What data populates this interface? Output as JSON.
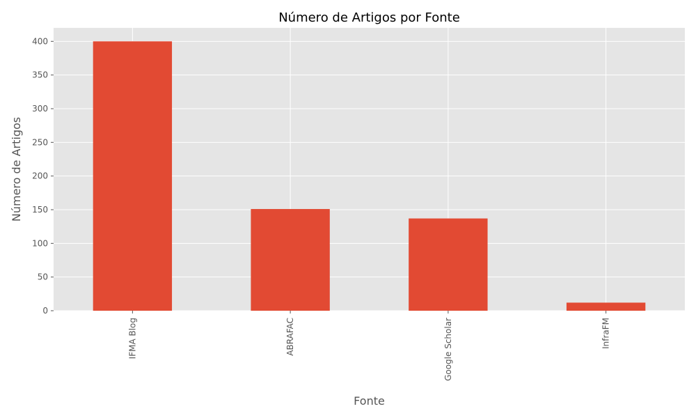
{
  "chart_data": {
    "type": "bar",
    "title": "Número de Artigos por Fonte",
    "xlabel": "Fonte",
    "ylabel": "Número de Artigos",
    "categories": [
      "IFMA Blog",
      "ABRAFAC",
      "Google Scholar",
      "InfraFM"
    ],
    "values": [
      400,
      151,
      137,
      12
    ],
    "ylim": [
      0,
      420
    ],
    "yticks": [
      0,
      50,
      100,
      150,
      200,
      250,
      300,
      350,
      400
    ],
    "grid": true,
    "legend": "none",
    "colors": {
      "bar": "#E24A33",
      "plot_background": "#E5E5E5",
      "grid": "#FFFFFF",
      "tick_text": "#555555",
      "title_text": "#000000"
    }
  }
}
